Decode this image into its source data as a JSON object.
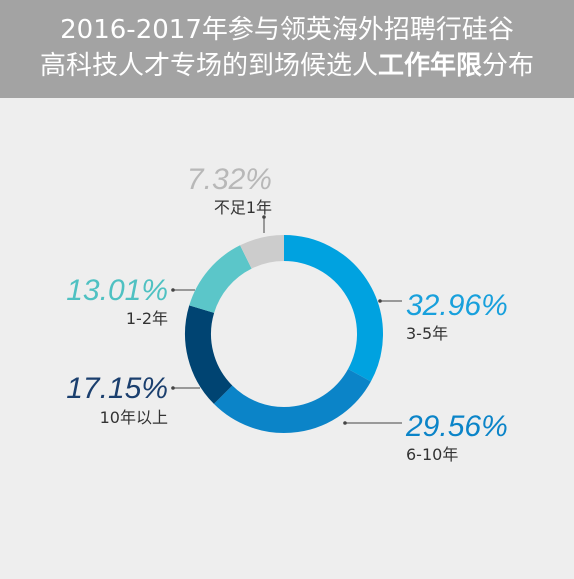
{
  "header": {
    "line1": "2016-2017年参与领英海外招聘行硅谷",
    "line2_pre": "高科技人才专场的到场候选人",
    "line2_bold": "工作年限",
    "line2_post": "分布"
  },
  "chart_data": {
    "type": "pie",
    "donut": true,
    "legend": "none",
    "slices": [
      {
        "label": "3-5年",
        "value": 32.96,
        "value_label": "32.96%",
        "color": "#00a2e0"
      },
      {
        "label": "6-10年",
        "value": 29.56,
        "value_label": "29.56%",
        "color": "#0b84c8"
      },
      {
        "label": "10年以上",
        "value": 17.15,
        "value_label": "17.15%",
        "color": "#004472"
      },
      {
        "label": "1-2年",
        "value": 13.01,
        "value_label": "13.01%",
        "color": "#5bc6c9"
      },
      {
        "label": "不足1年",
        "value": 7.32,
        "value_label": "7.32%",
        "color": "#cccccc"
      }
    ]
  },
  "colors": {
    "background": "#eeeeee",
    "header_bg": "#a3a3a3",
    "leader_line": "#444444",
    "category_text": "#333333"
  }
}
